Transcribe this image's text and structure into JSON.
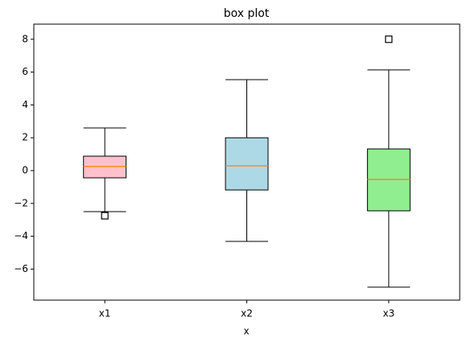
{
  "chart_data": {
    "type": "box",
    "title": "box plot",
    "x_label": "x",
    "categories": [
      "x1",
      "x2",
      "x3"
    ],
    "boxes": [
      {
        "whislo": -2.5,
        "q1": -0.44,
        "med": 0.25,
        "q3": 0.88,
        "whishi": 2.6,
        "fliers": [
          -2.75
        ],
        "color": "#ffc0cb"
      },
      {
        "whislo": -4.31,
        "q1": -1.18,
        "med": 0.29,
        "q3": 2.0,
        "whishi": 5.54,
        "fliers": [],
        "color": "#add8e6"
      },
      {
        "whislo": -7.1,
        "q1": -2.45,
        "med": -0.54,
        "q3": 1.32,
        "whishi": 6.13,
        "fliers": [
          8.0
        ],
        "color": "#90ee90"
      }
    ],
    "median_color": "#ff7f0e",
    "ylim": [
      -7.89,
      8.92
    ],
    "yticks": [
      {
        "value": -6,
        "label": "−6"
      },
      {
        "value": -4,
        "label": "−4"
      },
      {
        "value": -2,
        "label": "−2"
      },
      0,
      2,
      4,
      6,
      8
    ],
    "grid": false
  }
}
